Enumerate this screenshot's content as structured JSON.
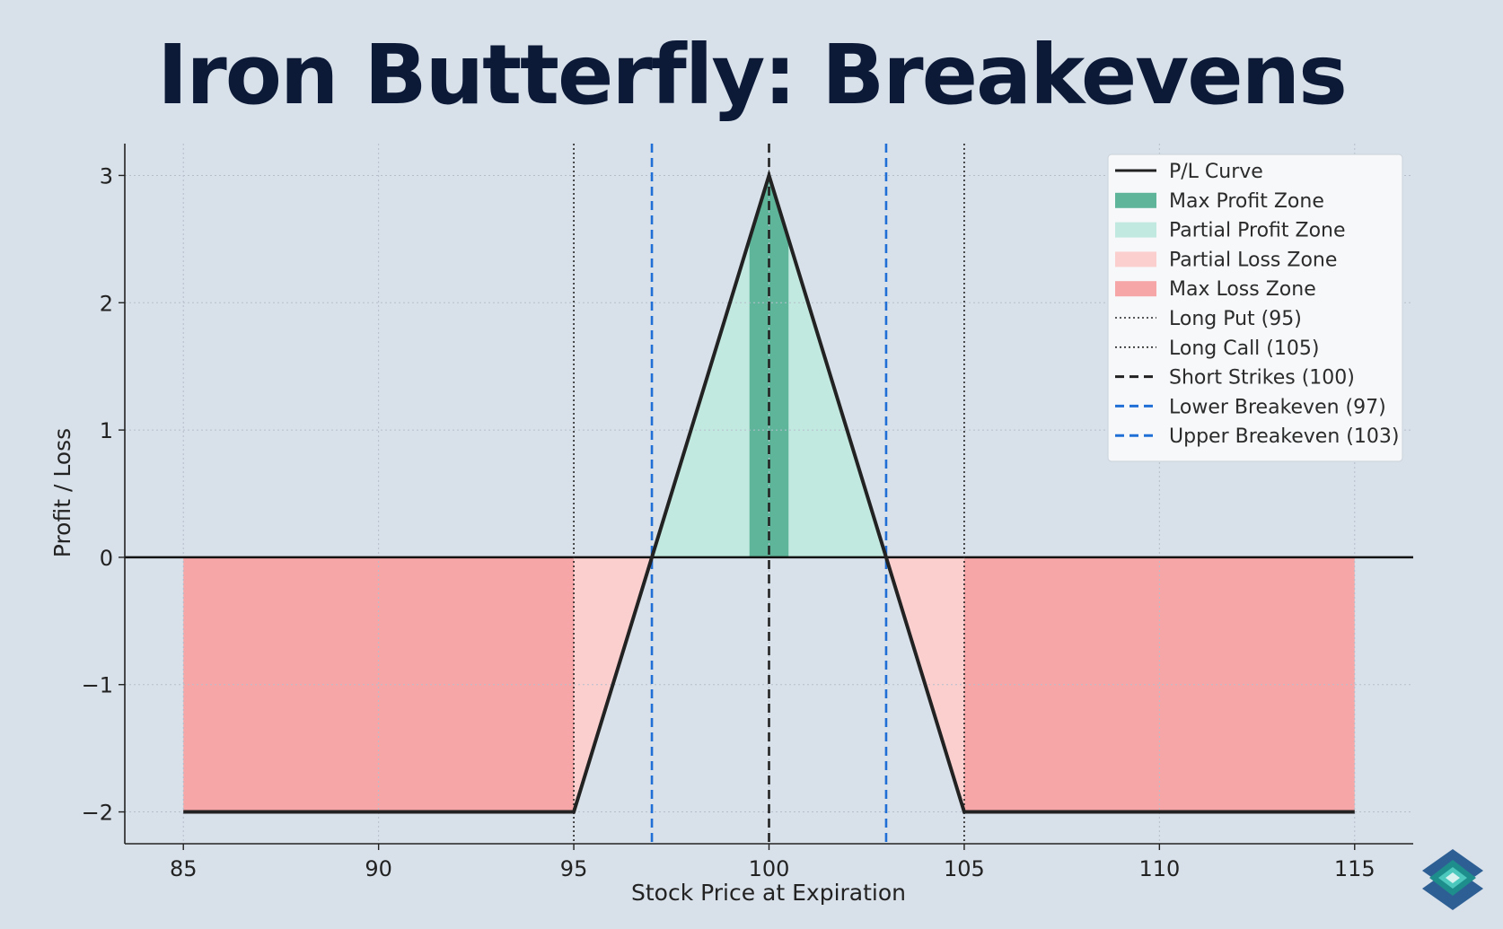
{
  "title": "Iron Butterfly: Breakevens",
  "colors": {
    "background": "#d8e0e9",
    "pl_curve": "#222222",
    "max_profit": "#5fb59a",
    "partial_profit": "#c2e9df",
    "partial_loss": "#fccfcf",
    "max_loss": "#f6a6a7",
    "breakeven": "#1f6fd6",
    "strike": "#222222"
  },
  "chart_data": {
    "type": "line",
    "xlabel": "Stock Price at Expiration",
    "ylabel": "Profit / Loss",
    "xlim": [
      83.5,
      116.5
    ],
    "ylim": [
      -2.25,
      3.25
    ],
    "xticks": [
      85,
      90,
      95,
      100,
      105,
      110,
      115
    ],
    "yticks": [
      -2,
      -1,
      0,
      1,
      2,
      3
    ],
    "ytick_labels": [
      "−2",
      "−1",
      "0",
      "1",
      "2",
      "3"
    ],
    "grid": true,
    "legend_position": "top-right",
    "series": [
      {
        "name": "P/L Curve",
        "style": "solid",
        "x": [
          85,
          95,
          100,
          105,
          115
        ],
        "y": [
          -2,
          -2,
          3,
          -2,
          -2
        ]
      }
    ],
    "zones": [
      {
        "name": "Max Profit Zone",
        "x_start": 99.5,
        "x_end": 100.5,
        "color_key": "max_profit"
      },
      {
        "name": "Partial Profit Zone",
        "x_start": 97,
        "x_end": 103,
        "color_key": "partial_profit"
      },
      {
        "name": "Partial Loss Zone",
        "ranges": [
          [
            95,
            97
          ],
          [
            103,
            105
          ]
        ],
        "color_key": "partial_loss"
      },
      {
        "name": "Max Loss Zone",
        "ranges": [
          [
            85,
            95
          ],
          [
            105,
            115
          ]
        ],
        "color_key": "max_loss"
      }
    ],
    "vlines": [
      {
        "name": "Long Put (95)",
        "x": 95,
        "style": "dotted",
        "color_key": "strike"
      },
      {
        "name": "Long Call (105)",
        "x": 105,
        "style": "dotted",
        "color_key": "strike"
      },
      {
        "name": "Short Strikes (100)",
        "x": 100,
        "style": "dashed",
        "color_key": "strike"
      },
      {
        "name": "Lower Breakeven (97)",
        "x": 97,
        "style": "dashed",
        "color_key": "breakeven"
      },
      {
        "name": "Upper Breakeven (103)",
        "x": 103,
        "style": "dashed",
        "color_key": "breakeven"
      }
    ],
    "legend": [
      {
        "label": "P/L Curve",
        "kind": "line",
        "style": "solid",
        "color_key": "pl_curve"
      },
      {
        "label": "Max Profit Zone",
        "kind": "patch",
        "color_key": "max_profit"
      },
      {
        "label": "Partial Profit Zone",
        "kind": "patch",
        "color_key": "partial_profit"
      },
      {
        "label": "Partial Loss Zone",
        "kind": "patch",
        "color_key": "partial_loss"
      },
      {
        "label": "Max Loss Zone",
        "kind": "patch",
        "color_key": "max_loss"
      },
      {
        "label": "Long Put (95)",
        "kind": "line",
        "style": "dotted",
        "color_key": "strike"
      },
      {
        "label": "Long Call (105)",
        "kind": "line",
        "style": "dotted",
        "color_key": "strike"
      },
      {
        "label": "Short Strikes (100)",
        "kind": "line",
        "style": "dashed",
        "color_key": "strike"
      },
      {
        "label": "Lower Breakeven (97)",
        "kind": "line",
        "style": "dashed",
        "color_key": "breakeven"
      },
      {
        "label": "Upper Breakeven (103)",
        "kind": "line",
        "style": "dashed",
        "color_key": "breakeven"
      }
    ]
  }
}
